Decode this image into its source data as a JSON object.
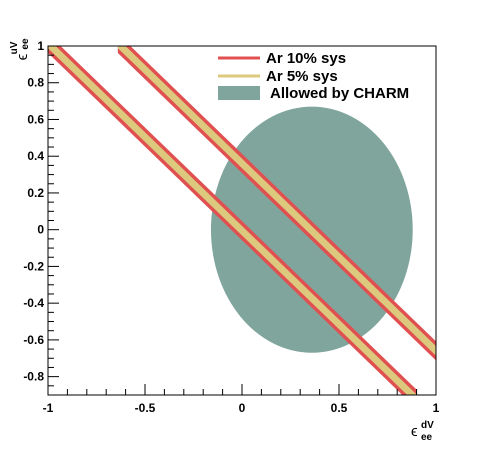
{
  "chart_data": {
    "type": "area",
    "title": "",
    "xlabel": {
      "base": "ϵ",
      "sup": "dV",
      "sub": "ee"
    },
    "ylabel": {
      "base": "ϵ",
      "sup": "uV",
      "sub": "ee"
    },
    "xlim": [
      -1,
      1
    ],
    "ylim": [
      -0.9,
      1
    ],
    "x_ticks": [
      {
        "value": -1,
        "label": "-1"
      },
      {
        "value": -0.5,
        "label": "-0.5"
      },
      {
        "value": 0,
        "label": "0"
      },
      {
        "value": 0.5,
        "label": "0.5"
      },
      {
        "value": 1,
        "label": "1"
      }
    ],
    "y_ticks": [
      {
        "value": 1,
        "label": "1"
      },
      {
        "value": 0.8,
        "label": "0.8"
      },
      {
        "value": 0.6,
        "label": "0.6"
      },
      {
        "value": 0.4,
        "label": "0.4"
      },
      {
        "value": 0.2,
        "label": "0.2"
      },
      {
        "value": 0,
        "label": "0"
      },
      {
        "value": -0.2,
        "label": "-0.2"
      },
      {
        "value": -0.4,
        "label": "-0.4"
      },
      {
        "value": -0.6,
        "label": "-0.6"
      },
      {
        "value": -0.8,
        "label": "-0.8"
      }
    ],
    "grid": false,
    "legend_position": "top-right",
    "series": [
      {
        "name": "Ar 10% sys",
        "color": "#e05050",
        "kind": "bands",
        "bands": [
          {
            "points": [
              [
                -1.0,
                1.014
              ],
              [
                0.9,
                -0.923
              ]
            ],
            "half_width": 0.052
          },
          {
            "points": [
              [
                -0.64,
                1.014
              ],
              [
                1.0,
                -0.66
              ]
            ],
            "half_width": 0.052
          }
        ]
      },
      {
        "name": "Ar 5% sys",
        "color": "#dcc97e",
        "kind": "bands",
        "bands": [
          {
            "points": [
              [
                -1.0,
                1.014
              ],
              [
                0.9,
                -0.923
              ]
            ],
            "half_width": 0.026
          },
          {
            "points": [
              [
                -0.64,
                1.014
              ],
              [
                1.0,
                -0.66
              ]
            ],
            "half_width": 0.026
          }
        ]
      },
      {
        "name": "Allowed by CHARM",
        "color": "#7fa59d",
        "kind": "region",
        "center": [
          0.36,
          0.0
        ],
        "radii": [
          0.52,
          0.67
        ],
        "clip": {
          "xmax": 1.0,
          "ymin": -0.9
        }
      }
    ]
  }
}
